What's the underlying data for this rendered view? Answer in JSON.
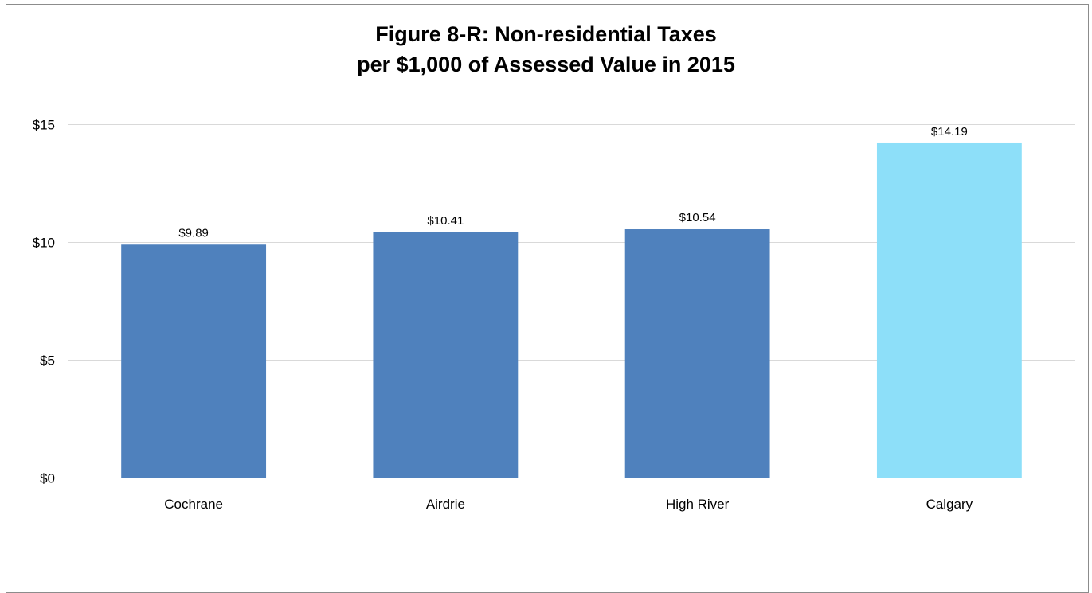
{
  "chart_data": {
    "type": "bar",
    "title_lines": [
      "Figure 8-R: Non-residential Taxes",
      "per $1,000 of Assessed Value in 2015"
    ],
    "categories": [
      "Cochrane",
      "Airdrie",
      "High River",
      "Calgary"
    ],
    "values": [
      9.89,
      10.41,
      10.54,
      14.19
    ],
    "data_labels": [
      "$9.89",
      "$10.41",
      "$10.54",
      "$14.19"
    ],
    "y_ticks": [
      0,
      5,
      10,
      15
    ],
    "y_tick_labels": [
      "$0",
      "$5",
      "$10",
      "$15"
    ],
    "ylim": [
      0,
      15
    ],
    "xlabel": "",
    "ylabel": "",
    "grid": true,
    "legend": "none",
    "bar_colors": [
      "#4f81bd",
      "#4f81bd",
      "#4f81bd",
      "#8ddff9"
    ]
  },
  "colors": {
    "gridline": "#d9d9d9",
    "axis": "#868686",
    "frame": "#8c8c8c"
  }
}
